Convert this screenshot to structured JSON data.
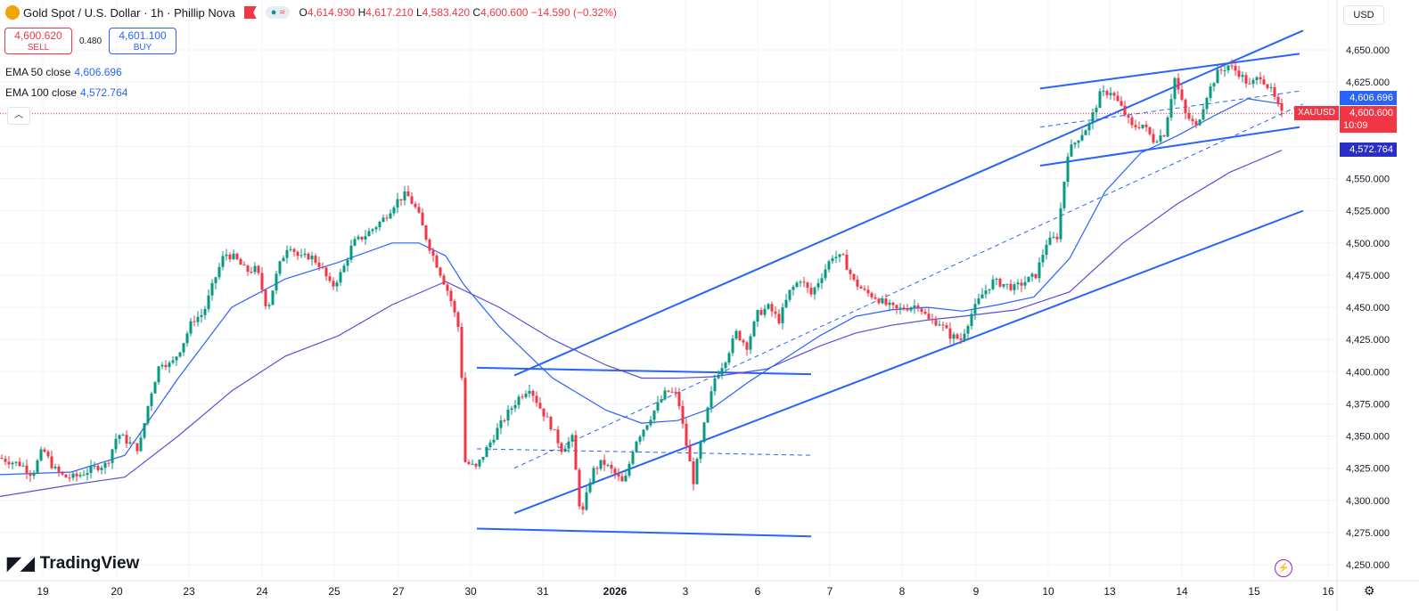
{
  "legend": {
    "title": "Gold Spot / U.S. Dollar · 1h · Phillip Nova",
    "open_label": "O",
    "open": "4,614.930",
    "high_label": "H",
    "high": "4,617.210",
    "low_label": "L",
    "low": "4,583.420",
    "close_label": "C",
    "close": "4,600.600",
    "change": "−14.590 (−0.32%)",
    "pill_dot": "●",
    "pill_wave": "≈"
  },
  "trade": {
    "sell_price": "4,600.620",
    "sell_label": "SELL",
    "spread": "0.480",
    "buy_price": "4,601.100",
    "buy_label": "BUY"
  },
  "indicators": {
    "ema50_label": "EMA 50 close",
    "ema50_value": "4,606.696",
    "ema100_label": "EMA 100 close",
    "ema100_value": "4,572.764"
  },
  "currency": "USD",
  "brand": "TradingView",
  "badges": {
    "ema50": "4,606.696",
    "symbol": "XAUUSD",
    "price": "4,600.600",
    "countdown": "10:09",
    "ema100": "4,572.764"
  },
  "colors": {
    "up": "#089981",
    "down": "#f23645",
    "ema50": "#2962ff",
    "ema100": "#5b4fd6",
    "trendline": "#2962ff"
  },
  "chart_data": {
    "type": "candlestick",
    "symbol": "XAUUSD",
    "y_ticks": [
      4250,
      4275,
      4300,
      4325,
      4350,
      4375,
      4400,
      4425,
      4450,
      4475,
      4500,
      4525,
      4550,
      4575,
      4600,
      4625,
      4650
    ],
    "y_tick_labels": [
      "4,250.000",
      "4,275.000",
      "4,300.000",
      "4,325.000",
      "4,350.000",
      "4,375.000",
      "4,400.000",
      "4,425.000",
      "4,450.000",
      "4,475.000",
      "4,500.000",
      "4,525.000",
      "4,550.000",
      "4,575.000",
      "4,600.000",
      "4,625.000",
      "4,650.000"
    ],
    "ylim": [
      4240,
      4668
    ],
    "x_ticks": [
      "19",
      "20",
      "23",
      "24",
      "25",
      "27",
      "30",
      "31",
      "2026",
      "3",
      "6",
      "7",
      "8",
      "9",
      "10",
      "13",
      "14",
      "15",
      "16"
    ],
    "last_price": 4600.6,
    "ema50_last": 4606.696,
    "ema100_last": 4572.764,
    "price_path": [
      [
        0,
        4333
      ],
      [
        12,
        4330
      ],
      [
        24,
        4328
      ],
      [
        36,
        4320
      ],
      [
        48,
        4340
      ],
      [
        60,
        4325
      ],
      [
        72,
        4318
      ],
      [
        84,
        4318
      ],
      [
        96,
        4322
      ],
      [
        108,
        4326
      ],
      [
        120,
        4328
      ],
      [
        132,
        4352
      ],
      [
        144,
        4345
      ],
      [
        156,
        4340
      ],
      [
        168,
        4380
      ],
      [
        180,
        4408
      ],
      [
        192,
        4405
      ],
      [
        204,
        4420
      ],
      [
        216,
        4440
      ],
      [
        228,
        4445
      ],
      [
        240,
        4470
      ],
      [
        252,
        4492
      ],
      [
        264,
        4488
      ],
      [
        276,
        4478
      ],
      [
        288,
        4480
      ],
      [
        300,
        4448
      ],
      [
        312,
        4480
      ],
      [
        324,
        4500
      ],
      [
        336,
        4488
      ],
      [
        348,
        4490
      ],
      [
        360,
        4482
      ],
      [
        372,
        4465
      ],
      [
        384,
        4478
      ],
      [
        396,
        4500
      ],
      [
        408,
        4505
      ],
      [
        420,
        4512
      ],
      [
        432,
        4520
      ],
      [
        444,
        4532
      ],
      [
        456,
        4538
      ],
      [
        468,
        4525
      ],
      [
        480,
        4500
      ],
      [
        492,
        4480
      ],
      [
        504,
        4460
      ],
      [
        516,
        4430
      ],
      [
        522,
        4330
      ],
      [
        534,
        4325
      ],
      [
        546,
        4340
      ],
      [
        558,
        4355
      ],
      [
        570,
        4368
      ],
      [
        582,
        4380
      ],
      [
        594,
        4388
      ],
      [
        606,
        4372
      ],
      [
        618,
        4358
      ],
      [
        630,
        4340
      ],
      [
        642,
        4348
      ],
      [
        652,
        4285
      ],
      [
        664,
        4322
      ],
      [
        676,
        4330
      ],
      [
        688,
        4322
      ],
      [
        700,
        4312
      ],
      [
        712,
        4345
      ],
      [
        724,
        4358
      ],
      [
        736,
        4372
      ],
      [
        748,
        4385
      ],
      [
        760,
        4382
      ],
      [
        768,
        4350
      ],
      [
        778,
        4315
      ],
      [
        790,
        4358
      ],
      [
        802,
        4395
      ],
      [
        814,
        4410
      ],
      [
        826,
        4430
      ],
      [
        838,
        4420
      ],
      [
        850,
        4445
      ],
      [
        862,
        4450
      ],
      [
        874,
        4440
      ],
      [
        886,
        4462
      ],
      [
        898,
        4472
      ],
      [
        910,
        4460
      ],
      [
        922,
        4475
      ],
      [
        934,
        4490
      ],
      [
        946,
        4488
      ],
      [
        958,
        4470
      ],
      [
        970,
        4462
      ],
      [
        982,
        4458
      ],
      [
        994,
        4452
      ],
      [
        1006,
        4448
      ],
      [
        1018,
        4450
      ],
      [
        1030,
        4452
      ],
      [
        1042,
        4440
      ],
      [
        1054,
        4438
      ],
      [
        1066,
        4428
      ],
      [
        1078,
        4425
      ],
      [
        1090,
        4445
      ],
      [
        1102,
        4460
      ],
      [
        1114,
        4470
      ],
      [
        1126,
        4468
      ],
      [
        1138,
        4465
      ],
      [
        1150,
        4470
      ],
      [
        1162,
        4475
      ],
      [
        1174,
        4500
      ],
      [
        1186,
        4505
      ],
      [
        1198,
        4570
      ],
      [
        1210,
        4582
      ],
      [
        1222,
        4592
      ],
      [
        1234,
        4615
      ],
      [
        1246,
        4618
      ],
      [
        1258,
        4605
      ],
      [
        1270,
        4590
      ],
      [
        1282,
        4592
      ],
      [
        1294,
        4580
      ],
      [
        1306,
        4585
      ],
      [
        1318,
        4628
      ],
      [
        1330,
        4600
      ],
      [
        1342,
        4590
      ],
      [
        1354,
        4615
      ],
      [
        1366,
        4632
      ],
      [
        1378,
        4638
      ],
      [
        1390,
        4632
      ],
      [
        1402,
        4622
      ],
      [
        1414,
        4630
      ],
      [
        1426,
        4618
      ],
      [
        1438,
        4600
      ]
    ],
    "ema50_path": [
      [
        0,
        4320
      ],
      [
        80,
        4322
      ],
      [
        140,
        4335
      ],
      [
        200,
        4395
      ],
      [
        260,
        4450
      ],
      [
        320,
        4472
      ],
      [
        380,
        4485
      ],
      [
        440,
        4500
      ],
      [
        470,
        4500
      ],
      [
        500,
        4490
      ],
      [
        520,
        4468
      ],
      [
        560,
        4435
      ],
      [
        620,
        4395
      ],
      [
        680,
        4370
      ],
      [
        720,
        4360
      ],
      [
        760,
        4362
      ],
      [
        800,
        4372
      ],
      [
        840,
        4392
      ],
      [
        880,
        4410
      ],
      [
        920,
        4428
      ],
      [
        960,
        4443
      ],
      [
        1000,
        4448
      ],
      [
        1040,
        4450
      ],
      [
        1080,
        4447
      ],
      [
        1120,
        4452
      ],
      [
        1160,
        4458
      ],
      [
        1200,
        4488
      ],
      [
        1240,
        4540
      ],
      [
        1280,
        4570
      ],
      [
        1320,
        4583
      ],
      [
        1360,
        4598
      ],
      [
        1400,
        4612
      ],
      [
        1438,
        4608
      ]
    ],
    "ema100_path": [
      [
        0,
        4303
      ],
      [
        80,
        4312
      ],
      [
        140,
        4318
      ],
      [
        200,
        4350
      ],
      [
        260,
        4385
      ],
      [
        320,
        4412
      ],
      [
        380,
        4428
      ],
      [
        440,
        4452
      ],
      [
        500,
        4470
      ],
      [
        560,
        4450
      ],
      [
        620,
        4425
      ],
      [
        680,
        4405
      ],
      [
        720,
        4395
      ],
      [
        760,
        4395
      ],
      [
        800,
        4396
      ],
      [
        860,
        4402
      ],
      [
        920,
        4420
      ],
      [
        960,
        4430
      ],
      [
        1000,
        4436
      ],
      [
        1040,
        4440
      ],
      [
        1080,
        4443
      ],
      [
        1140,
        4448
      ],
      [
        1200,
        4462
      ],
      [
        1260,
        4500
      ],
      [
        1320,
        4530
      ],
      [
        1380,
        4555
      ],
      [
        1438,
        4572
      ]
    ],
    "trendlines": [
      {
        "style": "solid",
        "x1": 577,
        "y1": 4290,
        "x2": 1462,
        "y2": 4525
      },
      {
        "style": "solid",
        "x1": 577,
        "y1": 4397,
        "x2": 1462,
        "y2": 4665
      },
      {
        "style": "solid",
        "x1": 535,
        "y1": 4403,
        "x2": 910,
        "y2": 4398
      },
      {
        "style": "solid",
        "x1": 535,
        "y1": 4278,
        "x2": 910,
        "y2": 4272
      },
      {
        "style": "dashed",
        "x1": 535,
        "y1": 4340,
        "x2": 910,
        "y2": 4335
      },
      {
        "style": "dashed",
        "x1": 577,
        "y1": 4325,
        "x2": 1462,
        "y2": 4608
      },
      {
        "style": "solid",
        "x1": 1167,
        "y1": 4620,
        "x2": 1458,
        "y2": 4647
      },
      {
        "style": "solid",
        "x1": 1167,
        "y1": 4560,
        "x2": 1458,
        "y2": 4590
      },
      {
        "style": "dashed",
        "x1": 1167,
        "y1": 4590,
        "x2": 1458,
        "y2": 4618
      }
    ]
  }
}
